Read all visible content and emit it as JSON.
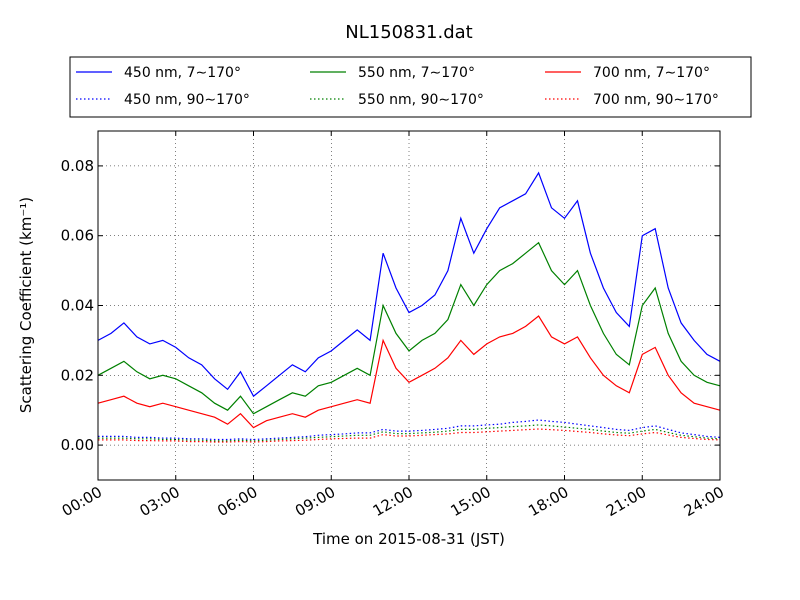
{
  "chart_data": {
    "type": "line",
    "title": "NL150831.dat",
    "xlabel": "Time on 2015-08-31 (JST)",
    "ylabel": "Scattering Coefficient (km⁻¹)",
    "xlim": [
      "00:00",
      "24:00"
    ],
    "ylim": [
      -0.01,
      0.09
    ],
    "x_ticks": [
      "00:00",
      "03:00",
      "06:00",
      "09:00",
      "12:00",
      "15:00",
      "18:00",
      "21:00",
      "24:00"
    ],
    "y_ticks": [
      "0.00",
      "0.02",
      "0.04",
      "0.06",
      "0.08"
    ],
    "grid": true,
    "legend_position": "top (above plot)",
    "x": [
      "00:00",
      "00:30",
      "01:00",
      "01:30",
      "02:00",
      "02:30",
      "03:00",
      "03:30",
      "04:00",
      "04:30",
      "05:00",
      "05:30",
      "06:00",
      "06:30",
      "07:00",
      "07:30",
      "08:00",
      "08:30",
      "09:00",
      "09:30",
      "10:00",
      "10:30",
      "11:00",
      "11:30",
      "12:00",
      "12:30",
      "13:00",
      "13:30",
      "14:00",
      "14:30",
      "15:00",
      "15:30",
      "16:00",
      "16:30",
      "17:00",
      "17:30",
      "18:00",
      "18:30",
      "19:00",
      "19:30",
      "20:00",
      "20:30",
      "21:00",
      "21:30",
      "22:00",
      "22:30",
      "23:00",
      "23:30",
      "24:00"
    ],
    "series": [
      {
        "name": "450 nm, 7∼170°",
        "color": "#0000ff",
        "style": "solid",
        "values": [
          0.03,
          0.032,
          0.035,
          0.031,
          0.029,
          0.03,
          0.028,
          0.025,
          0.023,
          0.019,
          0.016,
          0.021,
          0.014,
          0.017,
          0.02,
          0.023,
          0.021,
          0.025,
          0.027,
          0.03,
          0.033,
          0.03,
          0.055,
          0.045,
          0.038,
          0.04,
          0.043,
          0.05,
          0.065,
          0.055,
          0.062,
          0.068,
          0.07,
          0.072,
          0.078,
          0.068,
          0.065,
          0.07,
          0.055,
          0.045,
          0.038,
          0.034,
          0.06,
          0.062,
          0.045,
          0.035,
          0.03,
          0.026,
          0.024
        ]
      },
      {
        "name": "450 nm, 90∼170°",
        "color": "#0000ff",
        "style": "dotted",
        "values": [
          0.0025,
          0.0025,
          0.0025,
          0.0022,
          0.0022,
          0.002,
          0.002,
          0.0018,
          0.0018,
          0.0016,
          0.0016,
          0.0018,
          0.0016,
          0.0018,
          0.002,
          0.0022,
          0.0024,
          0.0028,
          0.003,
          0.0032,
          0.0035,
          0.0035,
          0.0045,
          0.004,
          0.004,
          0.0042,
          0.0045,
          0.0048,
          0.0055,
          0.0055,
          0.0058,
          0.006,
          0.0065,
          0.0068,
          0.0072,
          0.0068,
          0.0065,
          0.006,
          0.0055,
          0.005,
          0.0045,
          0.0042,
          0.005,
          0.0055,
          0.0045,
          0.0035,
          0.003,
          0.0025,
          0.0022
        ]
      },
      {
        "name": "550 nm, 7∼170°",
        "color": "#008000",
        "style": "solid",
        "values": [
          0.02,
          0.022,
          0.024,
          0.021,
          0.019,
          0.02,
          0.019,
          0.017,
          0.015,
          0.012,
          0.01,
          0.014,
          0.009,
          0.011,
          0.013,
          0.015,
          0.014,
          0.017,
          0.018,
          0.02,
          0.022,
          0.02,
          0.04,
          0.032,
          0.027,
          0.03,
          0.032,
          0.036,
          0.046,
          0.04,
          0.046,
          0.05,
          0.052,
          0.055,
          0.058,
          0.05,
          0.046,
          0.05,
          0.04,
          0.032,
          0.026,
          0.023,
          0.04,
          0.045,
          0.032,
          0.024,
          0.02,
          0.018,
          0.017
        ]
      },
      {
        "name": "550 nm, 90∼170°",
        "color": "#008000",
        "style": "dotted",
        "values": [
          0.002,
          0.002,
          0.002,
          0.0018,
          0.0018,
          0.0016,
          0.0016,
          0.0014,
          0.0014,
          0.0012,
          0.0012,
          0.0014,
          0.0012,
          0.0014,
          0.0016,
          0.0018,
          0.002,
          0.0022,
          0.0024,
          0.0026,
          0.0028,
          0.0028,
          0.0038,
          0.0033,
          0.0033,
          0.0035,
          0.0037,
          0.004,
          0.0045,
          0.0045,
          0.0048,
          0.005,
          0.0053,
          0.0055,
          0.0058,
          0.0055,
          0.0052,
          0.0048,
          0.0045,
          0.004,
          0.0036,
          0.0034,
          0.004,
          0.0045,
          0.0036,
          0.0028,
          0.0024,
          0.002,
          0.0018
        ]
      },
      {
        "name": "700 nm, 7∼170°",
        "color": "#ff0000",
        "style": "solid",
        "values": [
          0.012,
          0.013,
          0.014,
          0.012,
          0.011,
          0.012,
          0.011,
          0.01,
          0.009,
          0.008,
          0.006,
          0.009,
          0.005,
          0.007,
          0.008,
          0.009,
          0.008,
          0.01,
          0.011,
          0.012,
          0.013,
          0.012,
          0.03,
          0.022,
          0.018,
          0.02,
          0.022,
          0.025,
          0.03,
          0.026,
          0.029,
          0.031,
          0.032,
          0.034,
          0.037,
          0.031,
          0.029,
          0.031,
          0.025,
          0.02,
          0.017,
          0.015,
          0.026,
          0.028,
          0.02,
          0.015,
          0.012,
          0.011,
          0.01
        ]
      },
      {
        "name": "700 nm, 90∼170°",
        "color": "#ff0000",
        "style": "dotted",
        "values": [
          0.0015,
          0.0015,
          0.0015,
          0.0013,
          0.0013,
          0.0012,
          0.0012,
          0.001,
          0.001,
          0.0009,
          0.0009,
          0.001,
          0.0009,
          0.001,
          0.0012,
          0.0013,
          0.0014,
          0.0016,
          0.0018,
          0.0019,
          0.002,
          0.002,
          0.003,
          0.0026,
          0.0026,
          0.0028,
          0.003,
          0.0032,
          0.0036,
          0.0036,
          0.0038,
          0.004,
          0.0042,
          0.0044,
          0.0046,
          0.0044,
          0.0042,
          0.0039,
          0.0036,
          0.0032,
          0.0029,
          0.0027,
          0.0032,
          0.0036,
          0.0029,
          0.0022,
          0.0019,
          0.0016,
          0.0015
        ]
      }
    ]
  }
}
